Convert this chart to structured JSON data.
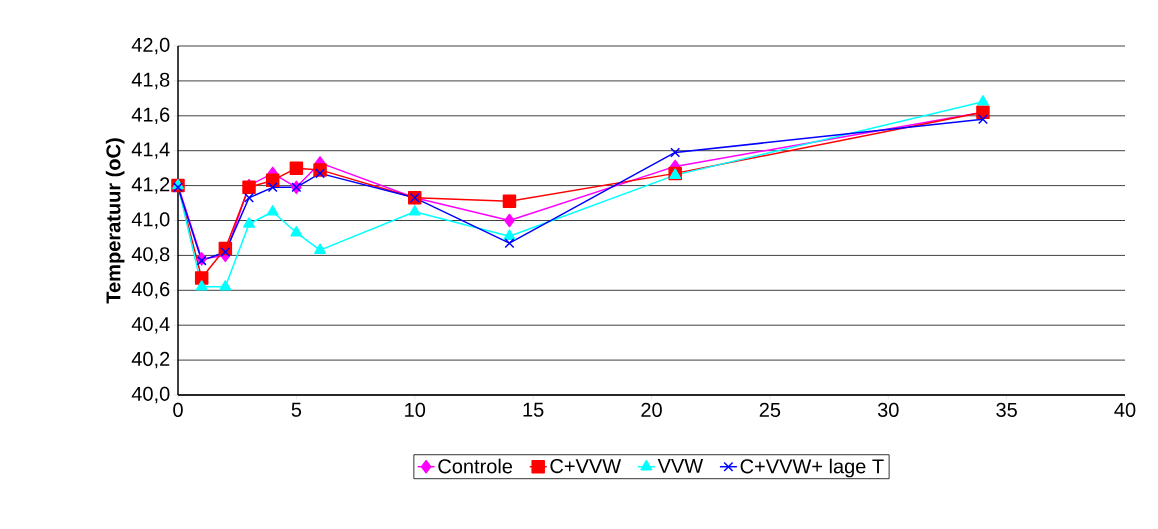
{
  "chart_data": {
    "type": "line",
    "ylabel": "Temperatuur (oC)",
    "x": [
      0,
      1,
      2,
      3,
      4,
      5,
      6,
      10,
      14,
      21,
      34
    ],
    "xlim": [
      0,
      40
    ],
    "xticks": [
      0,
      5,
      10,
      15,
      20,
      25,
      30,
      35,
      40
    ],
    "ylim": [
      40.0,
      42.0
    ],
    "yticks": [
      {
        "value": 40.0,
        "label": "40,0"
      },
      {
        "value": 40.2,
        "label": "40,2"
      },
      {
        "value": 40.4,
        "label": "40,4"
      },
      {
        "value": 40.6,
        "label": "40,6"
      },
      {
        "value": 40.8,
        "label": "40,8"
      },
      {
        "value": 41.0,
        "label": "41,0"
      },
      {
        "value": 41.2,
        "label": "41,2"
      },
      {
        "value": 41.4,
        "label": "41,4"
      },
      {
        "value": 41.6,
        "label": "41,6"
      },
      {
        "value": 41.8,
        "label": "41,8"
      },
      {
        "value": 42.0,
        "label": "42,0"
      }
    ],
    "grid": "y",
    "legend": "bottom",
    "line_style": "solid",
    "series": [
      {
        "name": "Controle",
        "color": "#ff00ff",
        "marker": "diamond",
        "values": [
          41.2,
          40.78,
          40.8,
          41.2,
          41.27,
          41.19,
          41.33,
          41.13,
          41.0,
          41.31,
          41.62
        ]
      },
      {
        "name": "C+VVW",
        "color": "#ff0000",
        "marker": "square",
        "values": [
          41.2,
          40.67,
          40.84,
          41.19,
          41.23,
          41.3,
          41.29,
          41.13,
          41.11,
          41.27,
          41.62
        ]
      },
      {
        "name": "VVW",
        "color": "#00ffff",
        "marker": "triangle",
        "values": [
          41.2,
          40.62,
          40.62,
          40.98,
          41.05,
          40.93,
          40.83,
          41.05,
          40.91,
          41.26,
          41.68
        ]
      },
      {
        "name": "C+VVW+ lage T",
        "color": "#0000ff",
        "marker": "cross",
        "values": [
          41.19,
          40.77,
          40.82,
          41.13,
          41.19,
          41.19,
          41.27,
          41.13,
          40.87,
          41.39,
          41.58
        ]
      }
    ]
  }
}
